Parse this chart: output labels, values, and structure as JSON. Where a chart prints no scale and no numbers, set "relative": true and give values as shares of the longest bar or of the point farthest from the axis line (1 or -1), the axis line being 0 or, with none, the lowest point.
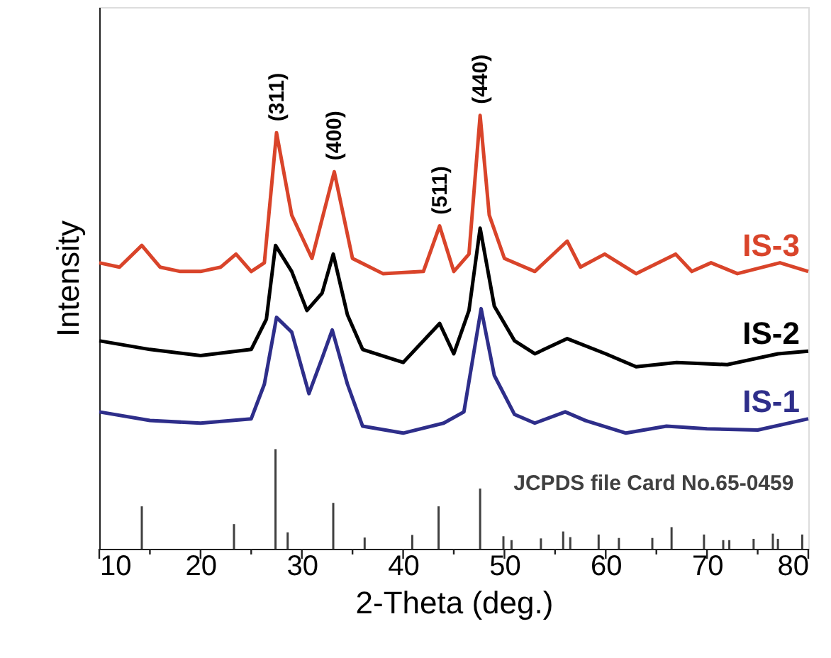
{
  "chart_data": {
    "type": "line",
    "relative": true,
    "xlabel": "2-Theta (deg.)",
    "ylabel": "Intensity",
    "xlim": [
      10,
      80
    ],
    "xticks": [
      10,
      {
        "value": 15,
        "label": null
      },
      20,
      {
        "value": 25,
        "label": null
      },
      30,
      {
        "value": 35,
        "label": null
      },
      40,
      {
        "value": 45,
        "label": null
      },
      50,
      {
        "value": 55,
        "label": null
      },
      60,
      {
        "value": 65,
        "label": null
      },
      70,
      {
        "value": 75,
        "label": null
      },
      80
    ],
    "grid": false,
    "marker": "none",
    "line_style": "solid",
    "series": [
      {
        "name": "IS-3",
        "color": "#d9442a",
        "x": [
          10,
          12,
          14.2,
          16,
          18,
          20,
          22,
          23.5,
          25,
          26.3,
          27.5,
          29,
          31,
          33.2,
          35,
          38,
          42,
          43.6,
          45,
          46.5,
          47.6,
          48.5,
          50,
          53,
          56.2,
          57.5,
          59.9,
          63,
          66.9,
          68.5,
          70.4,
          73,
          77.2,
          80
        ],
        "values": [
          0.66,
          0.65,
          0.7,
          0.65,
          0.64,
          0.64,
          0.65,
          0.68,
          0.64,
          0.66,
          0.96,
          0.77,
          0.67,
          0.87,
          0.67,
          0.635,
          0.64,
          0.745,
          0.64,
          0.68,
          1.0,
          0.77,
          0.67,
          0.64,
          0.71,
          0.65,
          0.68,
          0.635,
          0.68,
          0.64,
          0.66,
          0.635,
          0.66,
          0.64
        ]
      },
      {
        "name": "IS-2",
        "color": "#000000",
        "x": [
          10,
          15,
          20,
          25,
          26.5,
          27.4,
          29,
          30.5,
          32,
          33.1,
          34.5,
          36,
          40,
          43.6,
          45,
          46.5,
          47.6,
          49,
          51,
          53,
          56.2,
          60,
          63,
          67,
          72,
          77,
          80
        ],
        "values": [
          0.48,
          0.46,
          0.446,
          0.46,
          0.53,
          0.7,
          0.64,
          0.55,
          0.59,
          0.68,
          0.54,
          0.46,
          0.43,
          0.52,
          0.45,
          0.55,
          0.74,
          0.56,
          0.48,
          0.45,
          0.485,
          0.45,
          0.42,
          0.43,
          0.425,
          0.45,
          0.456
        ]
      },
      {
        "name": "IS-1",
        "color": "#2e2e8a",
        "x": [
          10,
          15,
          20,
          25,
          26.3,
          27.5,
          29,
          30.7,
          32,
          33.0,
          34.5,
          36,
          40,
          44,
          46,
          47.7,
          49,
          51,
          53,
          56,
          58,
          62,
          66,
          70,
          75,
          80
        ],
        "values": [
          0.316,
          0.296,
          0.29,
          0.3,
          0.38,
          0.534,
          0.5,
          0.358,
          0.44,
          0.505,
          0.38,
          0.283,
          0.267,
          0.29,
          0.316,
          0.554,
          0.4,
          0.31,
          0.29,
          0.316,
          0.296,
          0.267,
          0.283,
          0.277,
          0.274,
          0.3
        ]
      },
      {
        "name": "JCPDS file Card No.65-0459",
        "type": "bar",
        "color": "#404040",
        "x": [
          14.2,
          23.3,
          27.4,
          28.6,
          33.1,
          36.2,
          40.9,
          43.5,
          47.6,
          49.9,
          50.7,
          53.6,
          55.8,
          56.5,
          59.3,
          61.3,
          64.6,
          66.5,
          69.7,
          71.6,
          72.2,
          74.6,
          76.5,
          77.0,
          79.4
        ],
        "values": [
          0.098,
          0.057,
          0.23,
          0.038,
          0.106,
          0.026,
          0.032,
          0.098,
          0.139,
          0.029,
          0.02,
          0.024,
          0.04,
          0.027,
          0.033,
          0.025,
          0.025,
          0.05,
          0.033,
          0.02,
          0.02,
          0.023,
          0.035,
          0.023,
          0.033
        ]
      }
    ],
    "annotations": [
      {
        "text": "(311)",
        "x": 27.5,
        "y": 0.96
      },
      {
        "text": "(400)",
        "x": 33.2,
        "y": 0.87
      },
      {
        "text": "(511)",
        "x": 43.6,
        "y": 0.745
      },
      {
        "text": "(440)",
        "x": 47.6,
        "y": 1.0
      }
    ]
  }
}
